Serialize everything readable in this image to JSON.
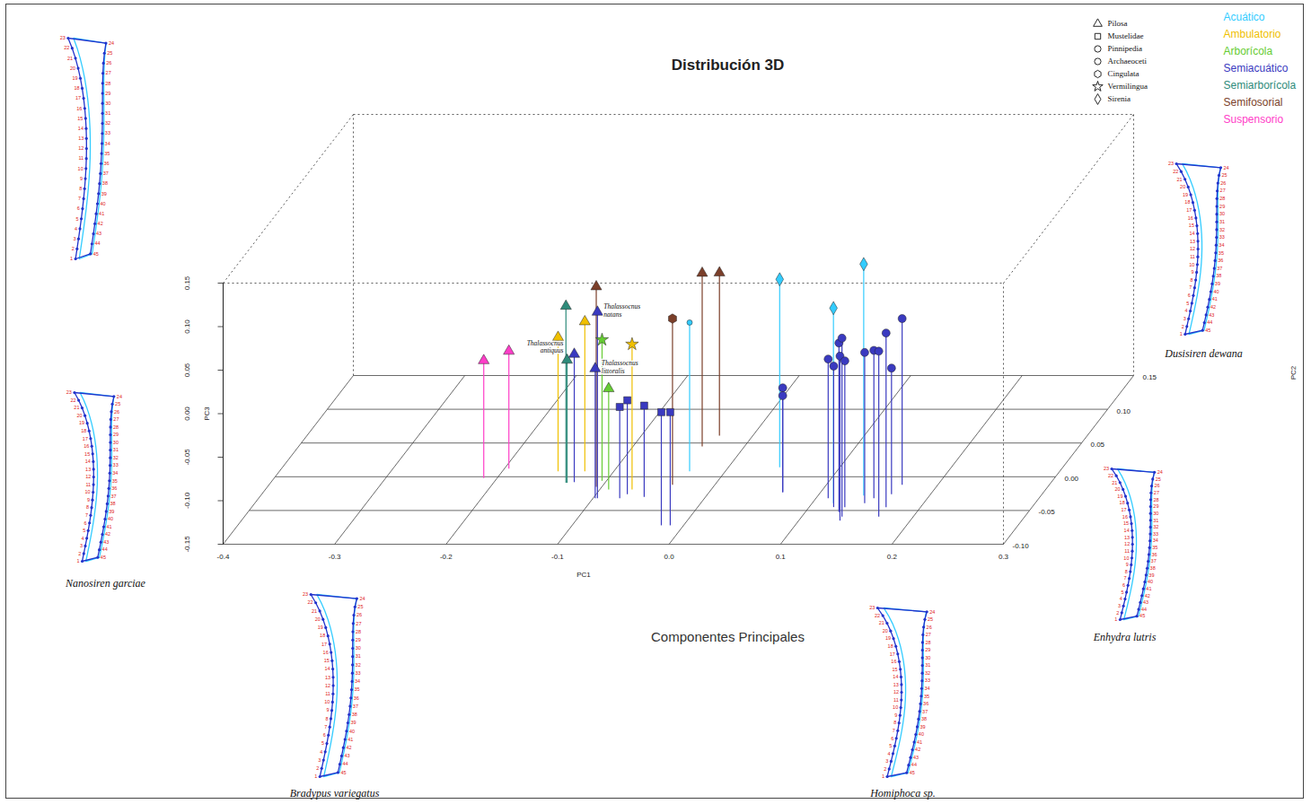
{
  "chart_data": {
    "type": "scatter3d",
    "title": "Distribución 3D",
    "caption": "Componentes Principales",
    "x_label": "PC1",
    "y_label": "PC2",
    "z_label": "PC3",
    "xlim": [
      -0.4,
      0.3
    ],
    "xticks": [
      -0.4,
      -0.3,
      -0.2,
      -0.1,
      {
        "value": 0,
        "label": "0.0"
      },
      0.1,
      0.2,
      0.3
    ],
    "ylim": [
      -0.1,
      0.15
    ],
    "yticks": [
      {
        "value": -0.1,
        "label": "-0.10"
      },
      -0.05,
      {
        "value": 0,
        "label": "0.00"
      },
      0.05,
      {
        "value": 0.1,
        "label": "0.10"
      },
      0.15
    ],
    "zlim": [
      -0.15,
      0.15
    ],
    "zticks": [
      -0.15,
      {
        "value": -0.1,
        "label": "-0.10"
      },
      -0.05,
      {
        "value": 0,
        "label": "0.00"
      },
      0.05,
      {
        "value": 0.1,
        "label": "0.10"
      },
      0.15
    ],
    "grid": true,
    "legend": "top-right",
    "groups": [
      {
        "name": "Pilosa",
        "marker": "triangle"
      },
      {
        "name": "Mustelidae",
        "marker": "square"
      },
      {
        "name": "Pinnipedia",
        "marker": "circle"
      },
      {
        "name": "Archaeoceti",
        "marker": "circle"
      },
      {
        "name": "Cingulata",
        "marker": "hexagon"
      },
      {
        "name": "Vermilingua",
        "marker": "star"
      },
      {
        "name": "Sirenia",
        "marker": "diamond"
      }
    ],
    "series": [
      {
        "name": "Acuático",
        "color": "#33ccff"
      },
      {
        "name": "Ambulatorio",
        "color": "#f0c000"
      },
      {
        "name": "Arborícola",
        "color": "#66cc33"
      },
      {
        "name": "Semiacuático",
        "color": "#3a3ac0"
      },
      {
        "name": "Semiarborícola",
        "color": "#2e8b7a"
      },
      {
        "name": "Semifosorial",
        "color": "#7b3f2a"
      },
      {
        "name": "Suspensorio",
        "color": "#ff3dc8"
      }
    ],
    "points": [
      {
        "group": "Pilosa",
        "series": "Suspensorio",
        "x": -0.212,
        "y": -0.002,
        "z": -0.015
      },
      {
        "group": "Pilosa",
        "series": "Suspensorio",
        "x": -0.196,
        "y": 0.012,
        "z": -0.015
      },
      {
        "group": "Pilosa",
        "series": "Semiarborícola",
        "x": -0.135,
        "y": -0.009,
        "z": 0.053
      },
      {
        "group": "Pilosa",
        "series": "Semiarborícola",
        "x": -0.134,
        "y": -0.009,
        "z": -0.009
      },
      {
        "group": "Pilosa",
        "series": "Ambulatorio",
        "x": -0.15,
        "y": 0.008,
        "z": 0.004
      },
      {
        "group": "Pilosa",
        "series": "Ambulatorio",
        "x": -0.126,
        "y": 0.008,
        "z": 0.022
      },
      {
        "group": "Pilosa",
        "series": "Semifosorial",
        "x": -0.105,
        "y": -0.015,
        "z": 0.08
      },
      {
        "group": "Pilosa",
        "series": "Semifosorial",
        "x": -0.038,
        "y": 0.045,
        "z": 0.049
      },
      {
        "group": "Pilosa",
        "series": "Semifosorial",
        "x": -0.03,
        "y": 0.061,
        "z": 0.037
      },
      {
        "group": "Pilosa",
        "series": "Semiacuático",
        "x": -0.128,
        "y": -0.008,
        "z": -0.003,
        "label": "Thalassocnus antiquus"
      },
      {
        "group": "Pilosa",
        "series": "Semiacuático",
        "x": -0.096,
        "y": -0.032,
        "z": 0.064,
        "label": "Thalassocnus natans"
      },
      {
        "group": "Pilosa",
        "series": "Semiacuático",
        "x": -0.098,
        "y": -0.032,
        "z": -0.001,
        "label": "Thalassocnus littoralis"
      },
      {
        "group": "Pilosa",
        "series": "Arborícola",
        "x": -0.092,
        "y": -0.019,
        "z": -0.034
      },
      {
        "group": "Vermilingua",
        "series": "Arborícola",
        "x": -0.104,
        "y": -0.006,
        "z": 0.012
      },
      {
        "group": "Vermilingua",
        "series": "Ambulatorio",
        "x": -0.071,
        "y": -0.019,
        "z": 0.017
      },
      {
        "group": "Mustelidae",
        "series": "Semiacuático",
        "x": -0.076,
        "y": -0.032,
        "z": -0.045
      },
      {
        "group": "Mustelidae",
        "series": "Semiacuático",
        "x": -0.072,
        "y": -0.026,
        "z": -0.042
      },
      {
        "group": "Mustelidae",
        "series": "Semiacuático",
        "x": -0.055,
        "y": -0.03,
        "z": -0.045
      },
      {
        "group": "Mustelidae",
        "series": "Semiacuático",
        "x": -0.02,
        "y": -0.072,
        "z": -0.02
      },
      {
        "group": "Mustelidae",
        "series": "Semiacuático",
        "x": -0.012,
        "y": -0.072,
        "z": -0.02
      },
      {
        "group": "Cingulata",
        "series": "Semifosorial",
        "x": -0.038,
        "y": -0.012,
        "z": 0.041
      },
      {
        "group": "Archaeoceti",
        "series": "Acuático",
        "x": -0.032,
        "y": 0.008,
        "z": 0.021
      },
      {
        "group": "Sirenia",
        "series": "Acuático",
        "x": 0.046,
        "y": 0.014,
        "z": 0.066
      },
      {
        "group": "Sirenia",
        "series": "Acuático",
        "x": 0.119,
        "y": -0.039,
        "z": 0.074
      },
      {
        "group": "Sirenia",
        "series": "Acuático",
        "x": 0.141,
        "y": -0.028,
        "z": 0.116
      },
      {
        "group": "Pinnipedia",
        "series": "Semiacuático",
        "x": 0.066,
        "y": -0.023,
        "z": -0.03
      },
      {
        "group": "Pinnipedia",
        "series": "Semiacuático",
        "x": 0.066,
        "y": -0.023,
        "z": -0.039
      },
      {
        "group": "Pinnipedia",
        "series": "Semiacuático",
        "x": 0.111,
        "y": -0.032,
        "z": 0.01
      },
      {
        "group": "Pinnipedia",
        "series": "Semiacuático",
        "x": 0.122,
        "y": -0.045,
        "z": 0.012
      },
      {
        "group": "Pinnipedia",
        "series": "Semiacuático",
        "x": 0.13,
        "y": -0.052,
        "z": 0.044
      },
      {
        "group": "Pinnipedia",
        "series": "Semiacuático",
        "x": 0.136,
        "y": -0.059,
        "z": 0.055
      },
      {
        "group": "Pinnipedia",
        "series": "Semiacuático",
        "x": 0.137,
        "y": -0.065,
        "z": 0.039
      },
      {
        "group": "Pinnipedia",
        "series": "Semiacuático",
        "x": 0.132,
        "y": -0.045,
        "z": 0.018
      },
      {
        "group": "Pinnipedia",
        "series": "Semiacuático",
        "x": 0.147,
        "y": -0.039,
        "z": 0.023
      },
      {
        "group": "Pinnipedia",
        "series": "Semiacuático",
        "x": 0.152,
        "y": -0.032,
        "z": 0.02
      },
      {
        "group": "Pinnipedia",
        "series": "Semiacuático",
        "x": 0.169,
        "y": -0.059,
        "z": 0.04
      },
      {
        "group": "Pinnipedia",
        "series": "Semiacuático",
        "x": 0.169,
        "y": -0.045,
        "z": 0.05
      },
      {
        "group": "Pinnipedia",
        "series": "Semiacuático",
        "x": 0.165,
        "y": -0.026,
        "z": -0.005
      },
      {
        "group": "Pinnipedia",
        "series": "Semiacuático",
        "x": 0.168,
        "y": -0.012,
        "z": 0.041
      }
    ],
    "outlines": [
      {
        "species": null
      },
      {
        "species": "Nanosiren garciae"
      },
      {
        "species": "Bradypus variegatus"
      },
      {
        "species": "Homiphoca sp."
      },
      {
        "species": "Enhydra lutris"
      },
      {
        "species": "Dusisiren dewana"
      }
    ],
    "landmarks": [
      1,
      2,
      3,
      4,
      5,
      6,
      7,
      8,
      9,
      10,
      11,
      12,
      13,
      14,
      15,
      16,
      17,
      18,
      19,
      20,
      21,
      22,
      23,
      24,
      25,
      26,
      27,
      28,
      29,
      30,
      31,
      32,
      33,
      34,
      35,
      36,
      37,
      38,
      39,
      40,
      41,
      42,
      43,
      44,
      45
    ]
  }
}
